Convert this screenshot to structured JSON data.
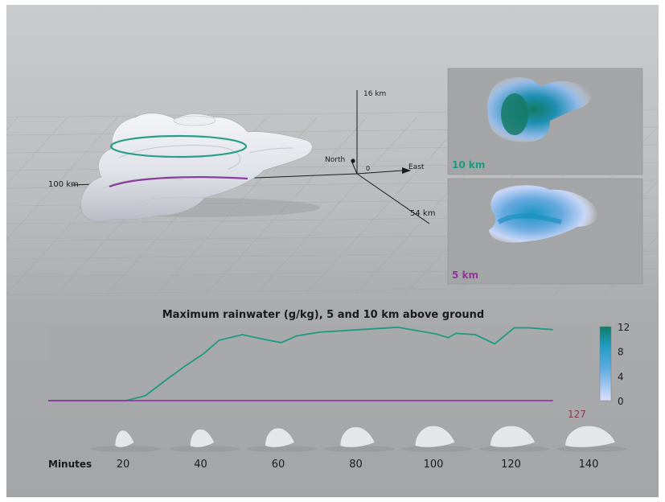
{
  "scene": {
    "axis_labels": {
      "vertical": "16 km",
      "west": "100 km",
      "south": "54 km",
      "north": "North",
      "east": "East",
      "origin": "0"
    }
  },
  "panels": [
    {
      "label": "10 km",
      "color": "#1e9a82"
    },
    {
      "label": "5 km",
      "color": "#93369a"
    }
  ],
  "chart_data": {
    "type": "line",
    "title": "Maximum rainwater (g/kg), 5 and 10 km above ground",
    "xlabel": "Minutes",
    "x_ticks": [
      20,
      40,
      60,
      80,
      100,
      120,
      140
    ],
    "xlim": [
      0,
      140
    ],
    "ylim": [
      0,
      12
    ],
    "annotation": "127",
    "colorbar": {
      "ticks": [
        0,
        4,
        8,
        12
      ],
      "colors": [
        "#dcdff8",
        "#1f9cc2",
        "#137a68"
      ]
    },
    "series": [
      {
        "name": "10 km",
        "color": "#1e9a82",
        "x": [
          0,
          8,
          14,
          20,
          25,
          30,
          35,
          40,
          44,
          50,
          55,
          60,
          64,
          70,
          80,
          90,
          100,
          103,
          105,
          110,
          115,
          120,
          124,
          130
        ],
        "y": [
          0,
          0,
          0,
          0,
          0.8,
          3.2,
          5.5,
          7.6,
          9.8,
          10.7,
          10.0,
          9.4,
          10.5,
          11.1,
          11.5,
          11.9,
          10.8,
          10.2,
          10.9,
          10.7,
          9.2,
          11.8,
          11.8,
          11.5
        ]
      },
      {
        "name": "5 km",
        "color": "#93369a",
        "x": [
          0,
          8,
          14,
          20,
          25,
          30,
          40,
          50,
          55,
          60,
          65,
          70,
          80,
          90,
          100,
          105,
          110,
          120,
          130
        ],
        "y": [
          0,
          0,
          0,
          0,
          0,
          0,
          0,
          0,
          0,
          0,
          0,
          0,
          0,
          0,
          0,
          0,
          0,
          0,
          0
        ]
      }
    ]
  }
}
